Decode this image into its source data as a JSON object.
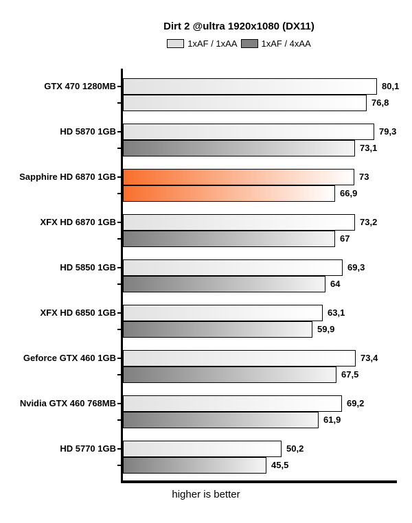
{
  "page": {
    "background": "#ffffff"
  },
  "chart_data": {
    "type": "bar",
    "orientation": "horizontal",
    "title": "Dirt 2 @ultra 1920x1080 (DX11)",
    "footer": "higher is better",
    "grid": false,
    "xlim": [
      0,
      86.3
    ],
    "value_decimal_separator": ",",
    "legend_position": "top-center",
    "legend": [
      {
        "label": "1xAF / 1xAA",
        "swatch_color": "#e0e0e0"
      },
      {
        "label": "1xAF / 4xAA",
        "swatch_color": "#808080"
      }
    ],
    "categories": [
      "GTX 470 1280MB",
      "HD 5870 1GB",
      "Sapphire HD 6870 1GB",
      "XFX HD 6870 1GB",
      "HD 5850 1GB",
      "XFX HD 6850 1GB",
      "Geforce GTX 460 1GB",
      "Nvidia GTX 460 768MB",
      "HD 5770 1GB"
    ],
    "series": [
      {
        "name": "1xAF / 1xAA",
        "values": [
          80.1,
          79.3,
          73,
          73.2,
          69.3,
          63.1,
          73.4,
          69.2,
          50.2
        ],
        "display": [
          "80,1",
          "79,3",
          "73",
          "73,2",
          "69,3",
          "63,1",
          "73,4",
          "69,2",
          "50,2"
        ]
      },
      {
        "name": "1xAF / 4xAA",
        "values": [
          76.8,
          73.1,
          66.9,
          67,
          64,
          59.9,
          67.5,
          61.9,
          45.5
        ],
        "display": [
          "76,8",
          "73,1",
          "66,9",
          "67",
          "64",
          "59,9",
          "67,5",
          "61,9",
          "45,5"
        ]
      }
    ],
    "highlight_category": "Sapphire HD 6870 1GB",
    "bar_styles": [
      [
        "light",
        "light"
      ],
      [
        "light",
        "dark"
      ],
      [
        "orange",
        "orange"
      ],
      [
        "light",
        "dark"
      ],
      [
        "light",
        "dark"
      ],
      [
        "light",
        "dark"
      ],
      [
        "light",
        "dark"
      ],
      [
        "light",
        "dark"
      ],
      [
        "light",
        "dark"
      ]
    ],
    "colors": {
      "axis": "#000000",
      "bar_border": "#000000",
      "light_start": "#e2e2e2",
      "light_end": "#ffffff",
      "dark_start": "#7f7f7f",
      "dark_end": "#f5f5f5",
      "orange_start": "#f96f2c",
      "orange_end": "#ffffff"
    }
  }
}
